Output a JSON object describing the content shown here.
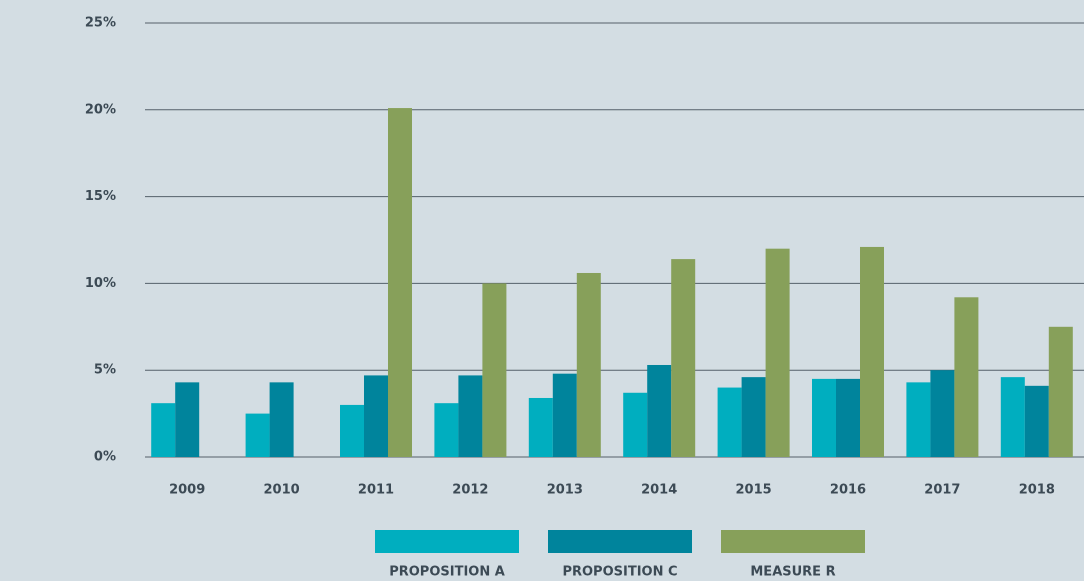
{
  "chart_data": {
    "type": "bar",
    "categories": [
      "2009",
      "2010",
      "2011",
      "2012",
      "2013",
      "2014",
      "2015",
      "2016",
      "2017",
      "2018"
    ],
    "series": [
      {
        "name": "PROPOSITION A",
        "color": "#00aebf",
        "values": [
          3.1,
          2.5,
          3.0,
          3.1,
          3.4,
          3.7,
          4.0,
          4.5,
          4.3,
          4.6
        ]
      },
      {
        "name": "PROPOSITION C",
        "color": "#00849c",
        "values": [
          4.3,
          4.3,
          4.7,
          4.7,
          4.8,
          5.3,
          4.6,
          4.5,
          5.0,
          4.1
        ]
      },
      {
        "name": "MEASURE R",
        "color": "#87a05a",
        "values": [
          null,
          null,
          20.1,
          10.0,
          10.6,
          11.4,
          12.0,
          12.1,
          9.2,
          7.5
        ]
      }
    ],
    "ylim": [
      0,
      25
    ],
    "yticks": [
      {
        "value": 0,
        "label": "0%"
      },
      {
        "value": 5,
        "label": "5%"
      },
      {
        "value": 10,
        "label": "10%"
      },
      {
        "value": 15,
        "label": "15%"
      },
      {
        "value": 20,
        "label": "20%"
      },
      {
        "value": 25,
        "label": "25%"
      }
    ],
    "grid": true,
    "legend": "bottom"
  }
}
